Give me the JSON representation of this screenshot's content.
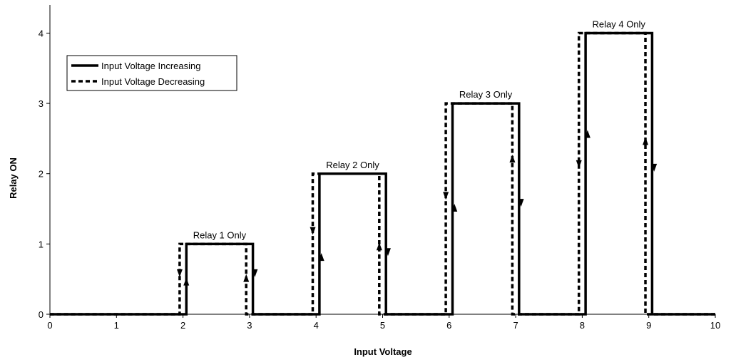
{
  "chart_data": {
    "type": "line",
    "xlabel": "Input Voltage",
    "ylabel": "Relay ON",
    "xlim": [
      0,
      10
    ],
    "ylim": [
      0,
      4.4
    ],
    "x_ticks": [
      0,
      1,
      2,
      3,
      4,
      5,
      6,
      7,
      8,
      9,
      10
    ],
    "y_ticks": [
      0,
      1,
      2,
      3,
      4
    ],
    "grid": false,
    "legend_position": "top-left",
    "series": [
      {
        "name": "Input Voltage Increasing",
        "style": "solid",
        "points": [
          [
            0,
            0
          ],
          [
            2.05,
            0
          ],
          [
            2.05,
            1
          ],
          [
            3.05,
            1
          ],
          [
            3.05,
            0
          ],
          [
            4.05,
            0
          ],
          [
            4.05,
            2
          ],
          [
            5.05,
            2
          ],
          [
            5.05,
            0
          ],
          [
            6.05,
            0
          ],
          [
            6.05,
            3
          ],
          [
            7.05,
            3
          ],
          [
            7.05,
            0
          ],
          [
            8.05,
            0
          ],
          [
            8.05,
            4
          ],
          [
            9.05,
            4
          ],
          [
            9.05,
            0
          ],
          [
            10,
            0
          ]
        ]
      },
      {
        "name": "Input Voltage Decreasing",
        "style": "dashed",
        "points": [
          [
            10,
            0
          ],
          [
            8.95,
            0
          ],
          [
            8.95,
            4
          ],
          [
            7.95,
            4
          ],
          [
            7.95,
            0
          ],
          [
            6.95,
            0
          ],
          [
            6.95,
            3
          ],
          [
            5.95,
            3
          ],
          [
            5.95,
            0
          ],
          [
            4.95,
            0
          ],
          [
            4.95,
            2
          ],
          [
            3.95,
            2
          ],
          [
            3.95,
            0
          ],
          [
            2.95,
            0
          ],
          [
            2.95,
            1
          ],
          [
            1.95,
            1
          ],
          [
            1.95,
            0
          ],
          [
            0,
            0
          ]
        ]
      }
    ],
    "arrows": [
      {
        "x": 2.05,
        "y": 0.45,
        "dir": "up"
      },
      {
        "x": 1.95,
        "y": 0.6,
        "dir": "down"
      },
      {
        "x": 3.08,
        "y": 0.6,
        "dir": "down"
      },
      {
        "x": 2.95,
        "y": 0.5,
        "dir": "up"
      },
      {
        "x": 4.08,
        "y": 0.8,
        "dir": "up"
      },
      {
        "x": 3.95,
        "y": 1.2,
        "dir": "down"
      },
      {
        "x": 5.08,
        "y": 0.9,
        "dir": "down"
      },
      {
        "x": 4.95,
        "y": 0.95,
        "dir": "up"
      },
      {
        "x": 6.08,
        "y": 1.5,
        "dir": "up"
      },
      {
        "x": 5.95,
        "y": 1.7,
        "dir": "down"
      },
      {
        "x": 7.08,
        "y": 1.6,
        "dir": "down"
      },
      {
        "x": 6.95,
        "y": 2.2,
        "dir": "up"
      },
      {
        "x": 8.08,
        "y": 2.55,
        "dir": "up"
      },
      {
        "x": 7.95,
        "y": 2.15,
        "dir": "down"
      },
      {
        "x": 9.08,
        "y": 2.1,
        "dir": "down"
      },
      {
        "x": 8.95,
        "y": 2.45,
        "dir": "up"
      }
    ],
    "annotations": [
      {
        "text": "Relay 1 Only",
        "x": 2.55,
        "y": 1.04
      },
      {
        "text": "Relay 2 Only",
        "x": 4.55,
        "y": 2.04
      },
      {
        "text": "Relay 3 Only",
        "x": 6.55,
        "y": 3.04
      },
      {
        "text": "Relay 4 Only",
        "x": 8.55,
        "y": 4.04
      }
    ]
  }
}
